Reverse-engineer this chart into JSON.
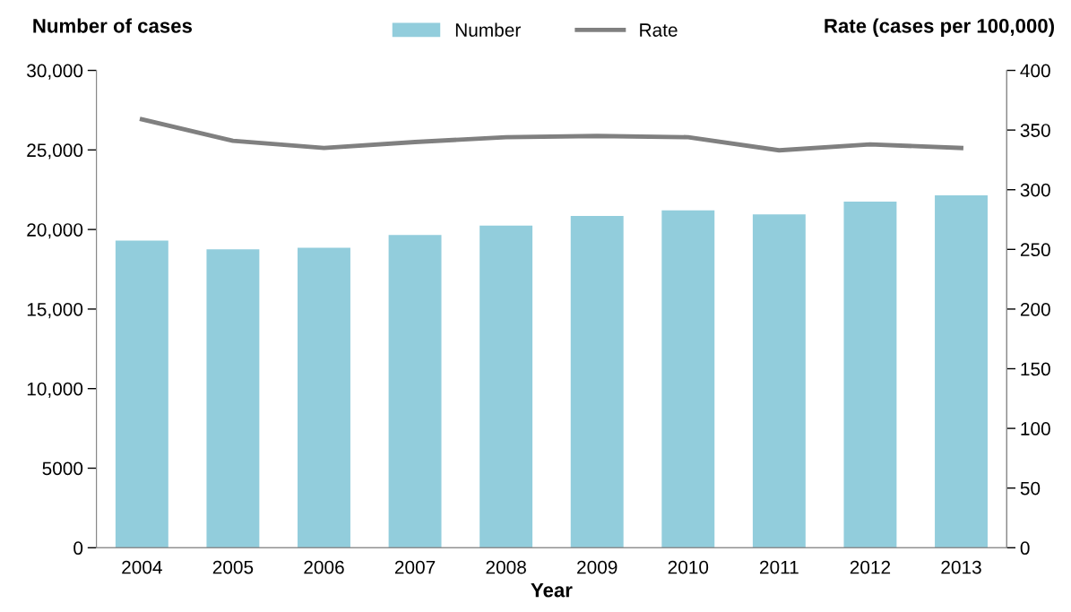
{
  "chart_data": {
    "type": "bar",
    "xlabel": "Year",
    "ylabel": "Number of cases",
    "y2label": "Rate (cases per 100,000)",
    "categories": [
      "2004",
      "2005",
      "2006",
      "2007",
      "2008",
      "2009",
      "2010",
      "2011",
      "2012",
      "2013"
    ],
    "series": [
      {
        "name": "Number",
        "color": "#92cddc",
        "values": [
          19300,
          18750,
          18850,
          19650,
          20250,
          20850,
          21200,
          20950,
          21750,
          22150
        ]
      },
      {
        "name": "Rate",
        "type": "line",
        "axis": "y2",
        "color": "#808080",
        "values": [
          359,
          341,
          335,
          340,
          344,
          345,
          344,
          333,
          338,
          335
        ]
      }
    ],
    "ylim": [
      0,
      30000
    ],
    "yticks": [
      0,
      {
        "value": 5000,
        "label": "5000"
      },
      {
        "value": 10000,
        "label": "10,000"
      },
      {
        "value": 15000,
        "label": "15,000"
      },
      {
        "value": 20000,
        "label": "20,000"
      },
      {
        "value": 25000,
        "label": "25,000"
      },
      {
        "value": 30000,
        "label": "30,000"
      }
    ],
    "y2lim": [
      0,
      400
    ],
    "y2ticks": [
      0,
      50,
      100,
      150,
      200,
      250,
      300,
      350,
      400
    ],
    "legend": "top",
    "grid": false,
    "marker": "none",
    "line_style": "solid"
  }
}
